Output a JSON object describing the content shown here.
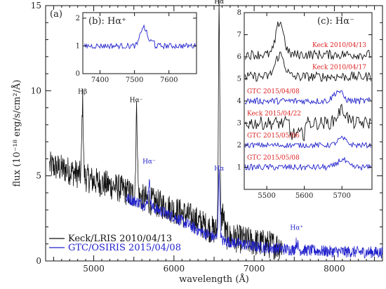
{
  "chart_data": [
    {
      "panel": "main",
      "type": "line",
      "tag": "(a)",
      "xlabel": "wavelength (Å)",
      "ylabel": "flux (10⁻¹⁸ erg/s/cm²/Å)",
      "xlim": [
        4400,
        8600
      ],
      "ylim": [
        0,
        15
      ],
      "xticks": [
        5000,
        6000,
        7000,
        8000
      ],
      "yticks": [
        0,
        5,
        10,
        15
      ],
      "colors": {
        "keck": "#111111",
        "gtc": "#2222cc",
        "annot_keck": "#111111",
        "annot_gtc": "#2222cc"
      },
      "legend": {
        "position": "bottom-left",
        "entries": [
          {
            "label": "Keck/LRIS 2010/04/13",
            "color": "#111111"
          },
          {
            "label": "GTC/OSIRIS 2015/04/08",
            "color": "#2222cc"
          }
        ]
      },
      "annotations": [
        {
          "text": "Hβ",
          "x": 4861,
          "y": 9.7,
          "color": "#111111"
        },
        {
          "text": "Hα⁻",
          "x": 5530,
          "y": 9.2,
          "color": "#111111"
        },
        {
          "text": "Hα⁻",
          "x": 5690,
          "y": 5.6,
          "color": "#2222cc"
        },
        {
          "text": "Hα",
          "x": 6563,
          "y": 15.0,
          "color": "#111111"
        },
        {
          "text": "Hα",
          "x": 6563,
          "y": 5.2,
          "color": "#2222cc"
        },
        {
          "text": "Hα⁺",
          "x": 7530,
          "y": 1.7,
          "color": "#2222cc"
        }
      ],
      "series": [
        {
          "name": "Keck/LRIS 2010/04/13",
          "color": "#111111",
          "continuum": [
            [
              4450,
              5.6
            ],
            [
              4700,
              5.3
            ],
            [
              5000,
              4.7
            ],
            [
              5300,
              4.3
            ],
            [
              5600,
              3.7
            ],
            [
              5900,
              3.2
            ],
            [
              6200,
              2.6
            ],
            [
              6450,
              1.9
            ],
            [
              6700,
              1.4
            ],
            [
              7000,
              1.1
            ],
            [
              7300,
              0.9
            ]
          ],
          "noise": 0.85,
          "x_start": 4450,
          "x_end": 7350,
          "lines": [
            {
              "center": 4861,
              "height": 4.4,
              "width": 9
            },
            {
              "center": 5535,
              "height": 4.9,
              "width": 10
            },
            {
              "center": 6563,
              "height": 13.2,
              "width": 9
            },
            {
              "center": 6610,
              "height": 1.3,
              "width": 15
            }
          ]
        },
        {
          "name": "GTC/OSIRIS 2015/04/08",
          "color": "#2222cc",
          "continuum": [
            [
              5400,
              3.7
            ],
            [
              5700,
              3.2
            ],
            [
              6000,
              2.6
            ],
            [
              6300,
              1.8
            ],
            [
              6600,
              1.2
            ],
            [
              7000,
              0.85
            ],
            [
              7500,
              0.65
            ],
            [
              8000,
              0.55
            ],
            [
              8600,
              0.5
            ]
          ],
          "noise": 0.35,
          "x_start": 5400,
          "x_end": 8600,
          "lines": [
            {
              "center": 5690,
              "height": 1.4,
              "width": 12
            },
            {
              "center": 6563,
              "height": 4.0,
              "width": 10
            },
            {
              "center": 7530,
              "height": 0.45,
              "width": 14
            }
          ]
        }
      ]
    },
    {
      "panel": "inset-b",
      "type": "line",
      "tag": "(b): Hα⁺",
      "xlim": [
        7350,
        7680
      ],
      "ylim": [
        0,
        2.2
      ],
      "xticks": [
        7400,
        7500,
        7600
      ],
      "yticks": [
        0,
        1,
        2
      ],
      "series": [
        {
          "name": "GTC/OSIRIS 2015/04/08",
          "color": "#2222cc",
          "base": 1.0,
          "noise": 0.1,
          "x_start": 7355,
          "x_end": 7678,
          "lines": [
            {
              "center": 7525,
              "height": 0.7,
              "width": 8
            }
          ]
        }
      ]
    },
    {
      "panel": "inset-c",
      "type": "line",
      "tag": "(c): Hα⁻",
      "xlim": [
        5440,
        5780
      ],
      "ylim": [
        0,
        8
      ],
      "xticks": [
        5500,
        5600,
        5700
      ],
      "yticks": [
        1,
        2,
        3,
        4,
        5,
        6,
        7,
        8
      ],
      "series": [
        {
          "name": "Keck 2010/04/13",
          "color": "#111111",
          "base": 6.1,
          "noise": 0.22,
          "bump_center": 5535,
          "bump_height": 1.5,
          "bump_width": 10,
          "label_color": "#dd2222"
        },
        {
          "name": "Keck 2010/04/17",
          "color": "#111111",
          "base": 5.1,
          "noise": 0.22,
          "bump_center": 5535,
          "bump_height": 1.0,
          "bump_width": 12,
          "label_color": "#dd2222"
        },
        {
          "name": "GTC 2015/04/08",
          "color": "#2222cc",
          "base": 4.0,
          "noise": 0.15,
          "bump_center": 5690,
          "bump_height": 0.45,
          "bump_width": 12,
          "label_color": "#dd2222"
        },
        {
          "name": "Keck 2015/04/22",
          "color": "#111111",
          "base": 3.0,
          "noise": 0.3,
          "bump_center": 5700,
          "bump_height": 0.6,
          "bump_width": 12,
          "label_color": "#dd2222"
        },
        {
          "name": "GTC 2015/05/06",
          "color": "#2222cc",
          "base": 2.0,
          "noise": 0.12,
          "bump_center": 5700,
          "bump_height": 0.3,
          "bump_width": 12,
          "label_color": "#dd2222"
        },
        {
          "name": "GTC 2015/05/08",
          "color": "#2222cc",
          "base": 1.0,
          "noise": 0.14,
          "bump_center": 5700,
          "bump_height": 0.35,
          "bump_width": 12,
          "label_color": "#dd2222"
        }
      ]
    }
  ]
}
